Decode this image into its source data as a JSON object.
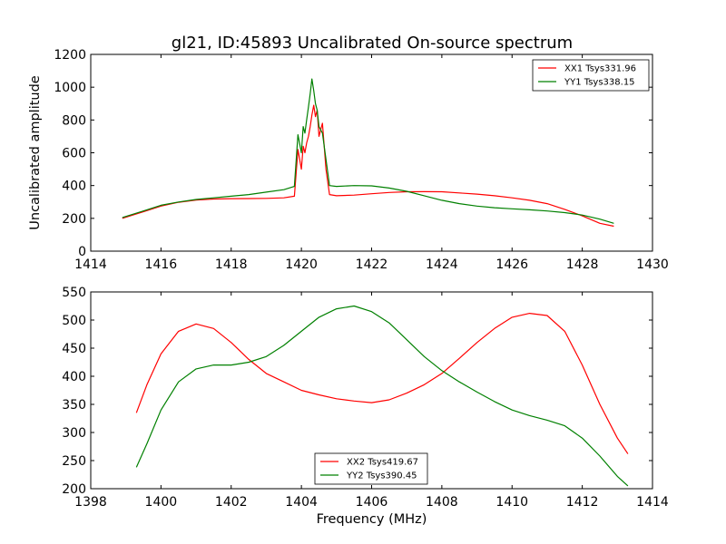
{
  "title": "gl21, ID:45893 Uncalibrated On-source spectrum",
  "colors": {
    "red": "#ff0000",
    "green": "#008000"
  },
  "chart_data": [
    {
      "type": "line",
      "title": "gl21, ID:45893 Uncalibrated On-source spectrum",
      "xlabel": "",
      "ylabel": "Uncalibrated amplitude",
      "xlim": [
        1414,
        1430
      ],
      "ylim": [
        0,
        1200
      ],
      "xticks": [
        "1414",
        "1416",
        "1418",
        "1420",
        "1422",
        "1424",
        "1426",
        "1428",
        "1430"
      ],
      "yticks": [
        "0",
        "200",
        "400",
        "600",
        "800",
        "1000",
        "1200"
      ],
      "legend_position": "top-right",
      "series": [
        {
          "name": "XX1 Tsys331.96",
          "color": "#ff0000",
          "x": [
            1414.9,
            1415.5,
            1416,
            1416.5,
            1417,
            1417.5,
            1418,
            1418.5,
            1419,
            1419.5,
            1419.8,
            1419.9,
            1420.0,
            1420.05,
            1420.1,
            1420.15,
            1420.2,
            1420.25,
            1420.3,
            1420.35,
            1420.4,
            1420.45,
            1420.5,
            1420.6,
            1420.7,
            1420.8,
            1421,
            1421.5,
            1422,
            1422.5,
            1423,
            1423.5,
            1424,
            1424.5,
            1425,
            1425.5,
            1426,
            1426.5,
            1427,
            1427.5,
            1428,
            1428.5,
            1428.9
          ],
          "values": [
            200,
            240,
            275,
            298,
            312,
            318,
            320,
            321,
            322,
            325,
            335,
            620,
            500,
            640,
            600,
            660,
            700,
            760,
            830,
            890,
            820,
            860,
            700,
            780,
            500,
            345,
            338,
            342,
            350,
            358,
            362,
            363,
            362,
            355,
            348,
            338,
            325,
            310,
            290,
            255,
            215,
            170,
            152
          ]
        },
        {
          "name": "YY1 Tsys338.15",
          "color": "#008000",
          "x": [
            1414.9,
            1415.5,
            1416,
            1416.5,
            1417,
            1417.5,
            1418,
            1418.5,
            1419,
            1419.5,
            1419.8,
            1419.9,
            1420.0,
            1420.05,
            1420.1,
            1420.15,
            1420.2,
            1420.25,
            1420.3,
            1420.35,
            1420.4,
            1420.45,
            1420.5,
            1420.6,
            1420.7,
            1420.8,
            1421,
            1421.5,
            1422,
            1422.5,
            1423,
            1423.5,
            1424,
            1424.5,
            1425,
            1425.5,
            1426,
            1426.5,
            1427,
            1427.5,
            1428,
            1428.5,
            1428.9
          ],
          "values": [
            205,
            245,
            280,
            300,
            315,
            325,
            335,
            345,
            360,
            375,
            395,
            710,
            600,
            760,
            720,
            800,
            880,
            960,
            1050,
            980,
            900,
            860,
            760,
            720,
            560,
            400,
            395,
            400,
            398,
            385,
            365,
            338,
            310,
            290,
            275,
            265,
            258,
            252,
            245,
            235,
            220,
            195,
            170
          ]
        }
      ]
    },
    {
      "type": "line",
      "title": "",
      "xlabel": "Frequency (MHz)",
      "ylabel": "",
      "xlim": [
        1398,
        1414
      ],
      "ylim": [
        200,
        550
      ],
      "xticks": [
        "1398",
        "1400",
        "1402",
        "1404",
        "1406",
        "1408",
        "1410",
        "1412",
        "1414"
      ],
      "yticks": [
        "200",
        "250",
        "300",
        "350",
        "400",
        "450",
        "500",
        "550"
      ],
      "legend_position": "bottom-center",
      "series": [
        {
          "name": "XX2 Tsys419.67",
          "color": "#ff0000",
          "x": [
            1399.3,
            1399.6,
            1400,
            1400.5,
            1401,
            1401.5,
            1402,
            1402.5,
            1403,
            1403.5,
            1404,
            1404.5,
            1405,
            1405.5,
            1406,
            1406.5,
            1407,
            1407.5,
            1408,
            1408.5,
            1409,
            1409.5,
            1410,
            1410.5,
            1411,
            1411.5,
            1412,
            1412.5,
            1413,
            1413.3
          ],
          "values": [
            335,
            385,
            440,
            480,
            493,
            485,
            460,
            430,
            405,
            390,
            375,
            367,
            360,
            356,
            353,
            358,
            370,
            385,
            405,
            432,
            460,
            485,
            505,
            512,
            508,
            480,
            420,
            350,
            290,
            262
          ]
        },
        {
          "name": "YY2 Tsys390.45",
          "color": "#008000",
          "x": [
            1399.3,
            1399.6,
            1400,
            1400.5,
            1401,
            1401.5,
            1402,
            1402.5,
            1403,
            1403.5,
            1404,
            1404.5,
            1405,
            1405.5,
            1406,
            1406.5,
            1407,
            1407.5,
            1408,
            1408.5,
            1409,
            1409.5,
            1410,
            1410.5,
            1411,
            1411.5,
            1412,
            1412.5,
            1413,
            1413.3
          ],
          "values": [
            238,
            280,
            340,
            390,
            413,
            420,
            420,
            425,
            435,
            455,
            480,
            505,
            520,
            525,
            515,
            495,
            465,
            435,
            410,
            390,
            372,
            355,
            340,
            330,
            322,
            312,
            290,
            258,
            222,
            205
          ]
        }
      ]
    }
  ]
}
